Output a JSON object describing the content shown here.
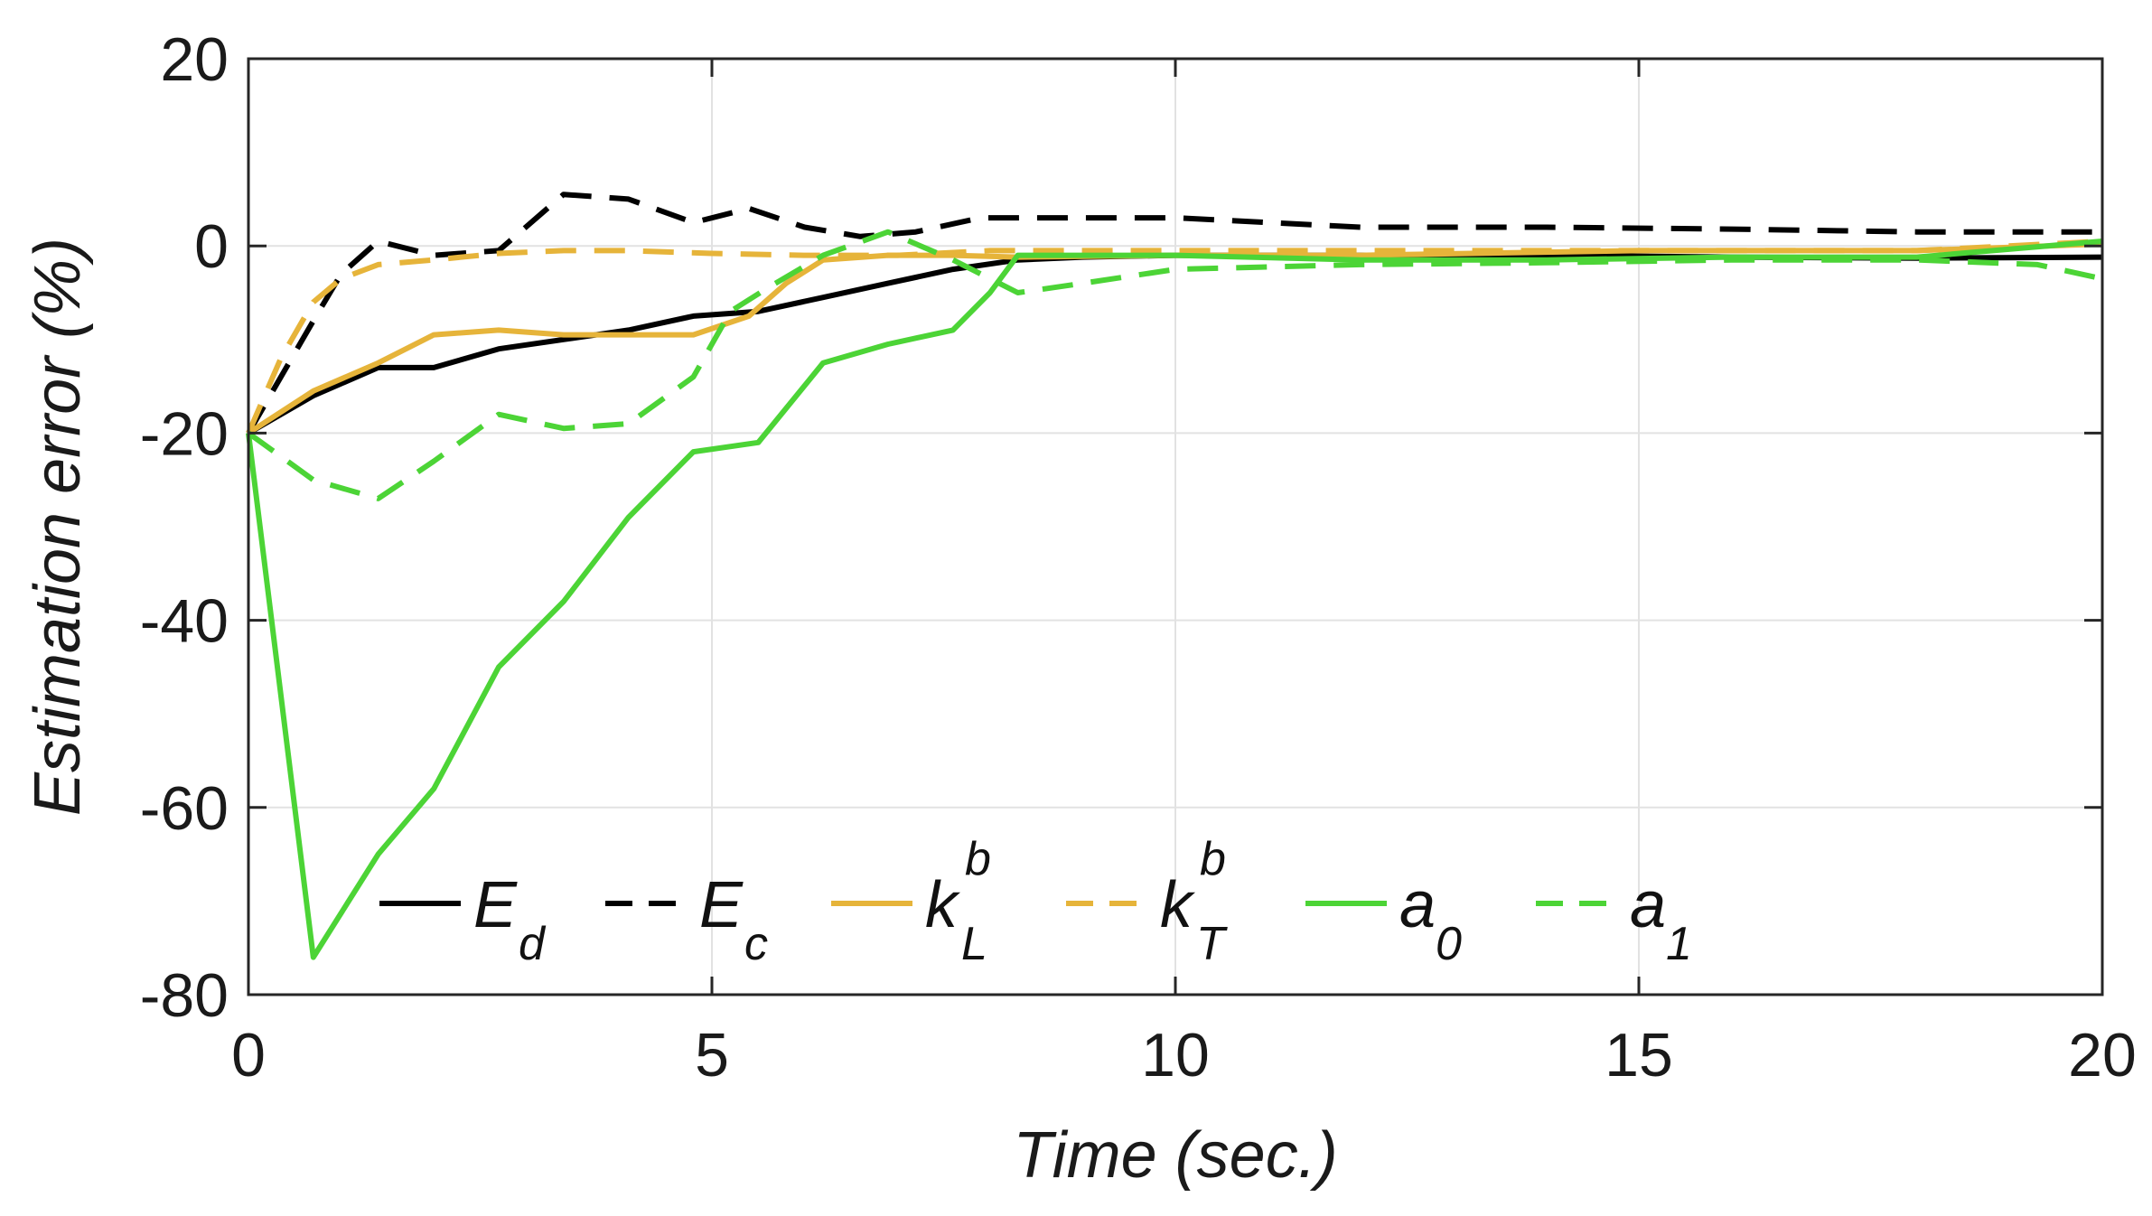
{
  "chart_data": {
    "type": "line",
    "title": "",
    "xlabel": "Time (sec.)",
    "ylabel": "Estimation error (%)",
    "xlim": [
      0,
      20
    ],
    "ylim": [
      -80,
      20
    ],
    "xticks": [
      0,
      5,
      10,
      15,
      20
    ],
    "yticks": [
      20,
      0,
      -20,
      -40,
      -60,
      -80
    ],
    "xtick_labels": [
      "0",
      "5",
      "10",
      "15",
      "20"
    ],
    "ytick_labels": [
      "20",
      "0",
      "-20",
      "-40",
      "-60",
      "-80"
    ],
    "grid": true,
    "legend_position": "bottom-center",
    "series": [
      {
        "id": "Ed",
        "name": "E_d",
        "label_main": "E",
        "label_sub": "d",
        "label_sup": "",
        "color": "#000000",
        "dash": "solid",
        "x": [
          0,
          0.7,
          1.4,
          2.0,
          2.7,
          3.4,
          4.1,
          4.8,
          5.5,
          6.2,
          6.9,
          7.6,
          8.3,
          9,
          10,
          12,
          14,
          16,
          18,
          20
        ],
        "y": [
          -20,
          -16,
          -13,
          -13,
          -11,
          -10,
          -9,
          -7.5,
          -7,
          -5.5,
          -4,
          -2.5,
          -1.5,
          -1.2,
          -1,
          -1,
          -1,
          -1.2,
          -1.3,
          -1.2
        ]
      },
      {
        "id": "Ec",
        "name": "E_c",
        "label_main": "E",
        "label_sub": "c",
        "label_sup": "",
        "color": "#000000",
        "dash": "dashed",
        "x": [
          0,
          0.35,
          0.7,
          1.0,
          1.4,
          2.0,
          2.7,
          3.4,
          4.1,
          4.8,
          5.4,
          6.0,
          6.6,
          7.2,
          7.9,
          8.6,
          10,
          12,
          14,
          16,
          18,
          20
        ],
        "y": [
          -20,
          -14,
          -8,
          -3,
          0.5,
          -1,
          -0.5,
          5.5,
          5,
          2.5,
          4,
          2,
          1,
          1.5,
          3,
          3,
          3,
          2,
          2,
          1.8,
          1.5,
          1.5
        ]
      },
      {
        "id": "kLb",
        "name": "k_L^b",
        "label_main": "k",
        "label_sub": "L",
        "label_sup": "b",
        "color": "#e6b43a",
        "dash": "solid",
        "x": [
          0,
          0.7,
          1.4,
          2.0,
          2.7,
          3.4,
          4.1,
          4.8,
          5.4,
          5.8,
          6.2,
          6.9,
          7.6,
          8.3,
          10,
          12,
          15,
          18,
          20
        ],
        "y": [
          -20,
          -15.5,
          -12.5,
          -9.5,
          -9,
          -9.5,
          -9.5,
          -9.5,
          -7.5,
          -4,
          -1.5,
          -1,
          -1,
          -1.2,
          -1,
          -1,
          -0.5,
          -0.5,
          0.2
        ]
      },
      {
        "id": "kTb",
        "name": "k_T^b",
        "label_main": "k",
        "label_sub": "T",
        "label_sup": "b",
        "color": "#e6b43a",
        "dash": "dashed",
        "x": [
          0,
          0.35,
          0.7,
          1.0,
          1.4,
          2.0,
          2.7,
          3.4,
          4.1,
          5,
          6,
          7,
          8,
          10,
          12,
          15,
          18,
          20
        ],
        "y": [
          -20,
          -12,
          -6,
          -3.5,
          -2,
          -1.5,
          -0.8,
          -0.5,
          -0.5,
          -0.8,
          -1,
          -1,
          -0.5,
          -0.5,
          -0.5,
          -0.5,
          -0.5,
          0.5
        ]
      },
      {
        "id": "a0",
        "name": "a_0",
        "label_main": "a",
        "label_sub": "0",
        "label_sup": "",
        "color": "#4cd436",
        "dash": "solid",
        "x": [
          0,
          0.7,
          1.4,
          2.0,
          2.7,
          3.4,
          4.1,
          4.8,
          5.5,
          6.2,
          6.9,
          7.6,
          8.0,
          8.3,
          9,
          10,
          12,
          14,
          16,
          18,
          20
        ],
        "y": [
          -20,
          -76,
          -65,
          -58,
          -45,
          -38,
          -29,
          -22,
          -21,
          -12.5,
          -10.5,
          -9,
          -5,
          -1,
          -1,
          -1,
          -1.5,
          -1.5,
          -1.2,
          -1.2,
          0.5
        ]
      },
      {
        "id": "a1",
        "name": "a_1",
        "label_main": "a",
        "label_sub": "1",
        "label_sup": "",
        "color": "#4cd436",
        "dash": "dashed",
        "x": [
          0,
          0.7,
          1.4,
          2.0,
          2.7,
          3.4,
          4.1,
          4.8,
          5.2,
          5.6,
          6.2,
          6.9,
          7.6,
          8.3,
          9,
          10,
          12,
          14,
          16,
          18,
          19.3,
          20
        ],
        "y": [
          -20,
          -25,
          -27,
          -23,
          -18,
          -19.5,
          -19,
          -14,
          -7,
          -4.5,
          -1,
          1.5,
          -1.5,
          -5,
          -4,
          -2.5,
          -2,
          -1.8,
          -1.5,
          -1.5,
          -2,
          -3.5
        ]
      }
    ]
  }
}
